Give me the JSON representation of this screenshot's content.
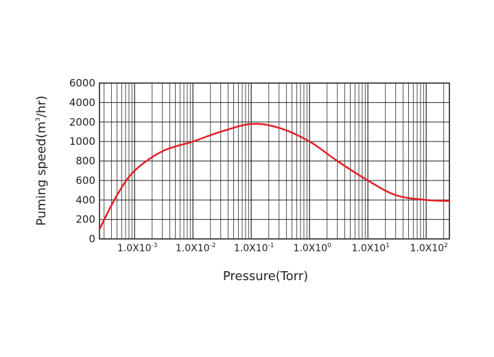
{
  "chart_data": {
    "type": "line",
    "title": "",
    "xlabel": "Pressure(Torr)",
    "ylabel": {
      "pre": "Puming speed(m",
      "sup": "3",
      "post": "/hr)"
    },
    "x_scale": "log",
    "xlim": [
      0.00025,
      250
    ],
    "x_ticks": [
      {
        "value": 0.001,
        "base": "1.0X10",
        "exp": "-3"
      },
      {
        "value": 0.01,
        "base": "1.0X10",
        "exp": "-2"
      },
      {
        "value": 0.1,
        "base": "1.0X10",
        "exp": "-1"
      },
      {
        "value": 1,
        "base": "1.0X10",
        "exp": "0"
      },
      {
        "value": 10,
        "base": "1.0X10",
        "exp": "1"
      },
      {
        "value": 100,
        "base": "1.0X10",
        "exp": "2"
      }
    ],
    "y_ticks": [
      "0",
      "200",
      "400",
      "600",
      "800",
      "1000",
      "2000",
      "4000",
      "6000"
    ],
    "grid": true,
    "series": [
      {
        "color": "#e2232a",
        "points": [
          {
            "x": 0.00025,
            "y": 100
          },
          {
            "x": 0.0005,
            "y": 450
          },
          {
            "x": 0.001,
            "y": 700
          },
          {
            "x": 0.003,
            "y": 900
          },
          {
            "x": 0.01,
            "y": 1000
          },
          {
            "x": 0.03,
            "y": 1500
          },
          {
            "x": 0.1,
            "y": 1900
          },
          {
            "x": 0.3,
            "y": 1700
          },
          {
            "x": 1,
            "y": 1000
          },
          {
            "x": 3,
            "y": 800
          },
          {
            "x": 10,
            "y": 600
          },
          {
            "x": 30,
            "y": 450
          },
          {
            "x": 100,
            "y": 400
          },
          {
            "x": 250,
            "y": 390
          }
        ]
      }
    ]
  }
}
